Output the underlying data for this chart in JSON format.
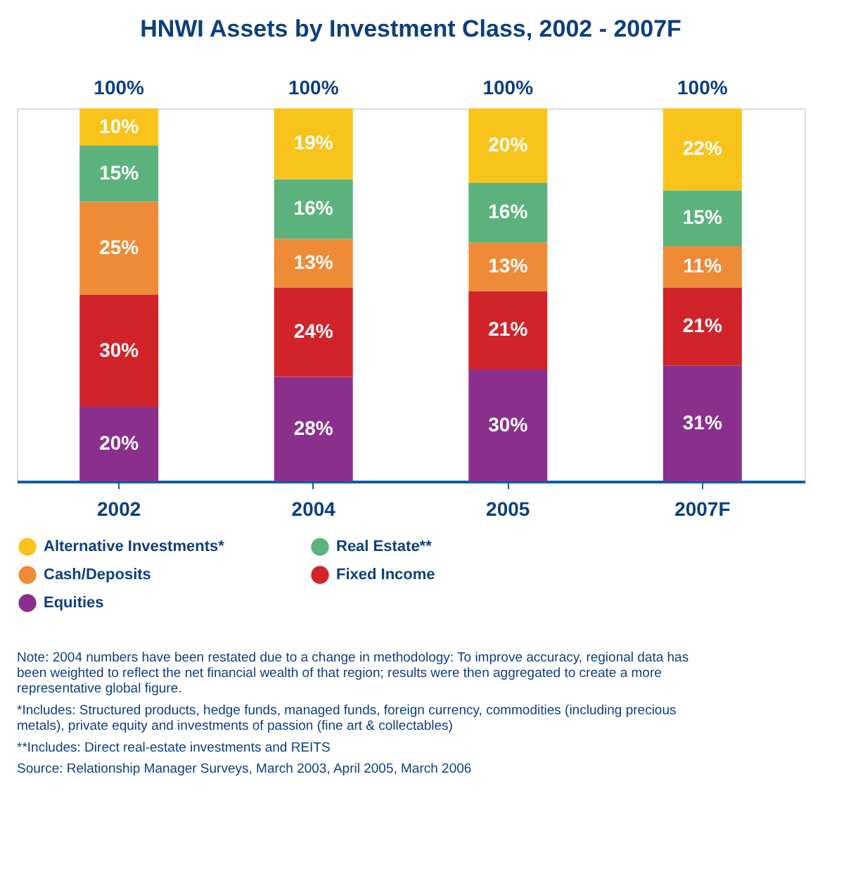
{
  "chart_data": {
    "type": "bar",
    "stacked": true,
    "title": "HNWI Assets by Investment Class, 2002 - 2007F",
    "categories": [
      "2002",
      "2004",
      "2005",
      "2007F"
    ],
    "series": [
      {
        "name": "Equities",
        "color": "#8b2f8c",
        "values": [
          20,
          28,
          30,
          31
        ],
        "value_labels": [
          "20%",
          "28%",
          "30%",
          "31%"
        ]
      },
      {
        "name": "Fixed Income",
        "color": "#d1232a",
        "values": [
          30,
          24,
          21,
          21
        ],
        "value_labels": [
          "30%",
          "24%",
          "21%",
          "21%"
        ]
      },
      {
        "name": "Cash/Deposits",
        "color": "#ef8a36",
        "values": [
          25,
          13,
          13,
          11
        ],
        "value_labels": [
          "25%",
          "13%",
          "13%",
          "11%"
        ]
      },
      {
        "name": "Real Estate**",
        "color": "#5cb27c",
        "values": [
          15,
          16,
          16,
          15
        ],
        "value_labels": [
          "15%",
          "16%",
          "16%",
          "15%"
        ]
      },
      {
        "name": "Alternative Investments*",
        "color": "#f8c31b",
        "values": [
          10,
          19,
          20,
          22
        ],
        "value_labels": [
          "10%",
          "19%",
          "20%",
          "22%"
        ]
      }
    ],
    "totals": [
      "100%",
      "100%",
      "100%",
      "100%"
    ],
    "tick_labels": "x",
    "grid": false,
    "legend": "bottom",
    "annotations": [
      "Note: 2004 numbers have been restated due to a change in methodology: To improve accuracy, regional data has been weighted to reflect the net financial wealth of that region; results were then aggregated to create a more representative global figure.",
      "*Includes: Structured products, hedge funds, managed funds, foreign currency, commodities (including precious metals), private equity and investments of passion (fine art & collectables)",
      "**Includes: Direct real-estate investments and REITS",
      "Source: Relationship Manager Surveys, March 2003, April 2005, March 2006"
    ]
  }
}
